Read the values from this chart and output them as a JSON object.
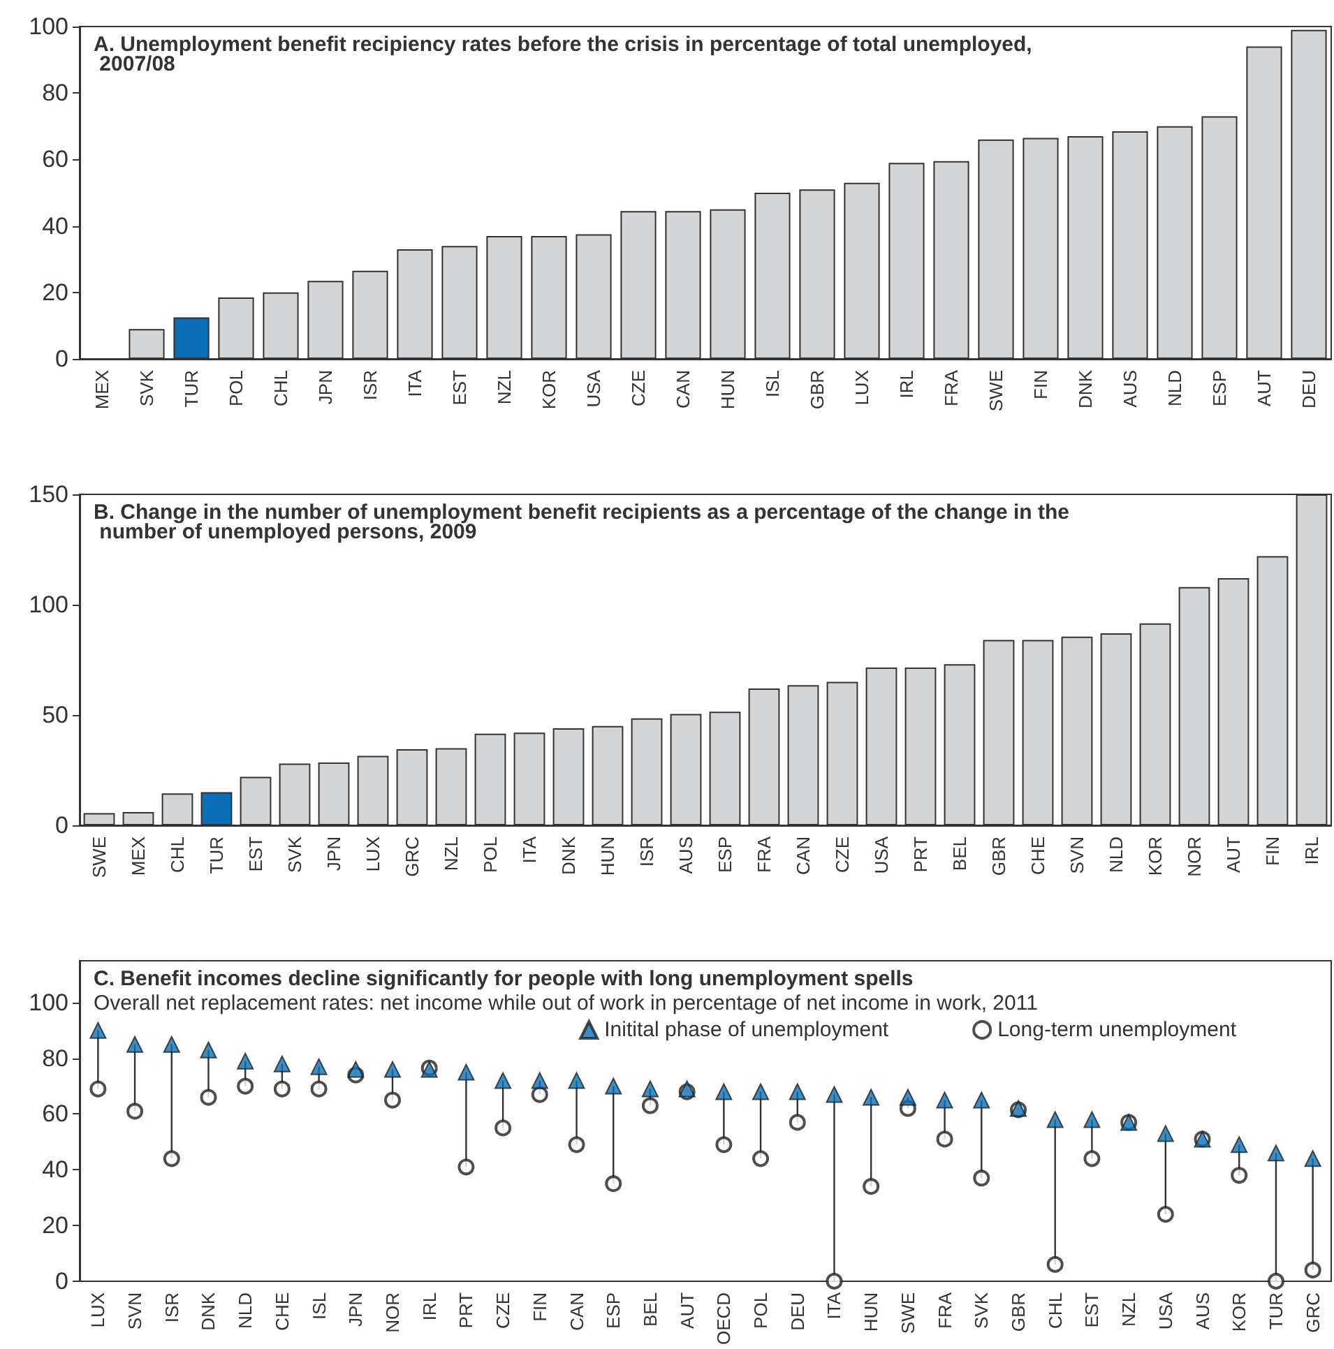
{
  "chart_data": [
    {
      "type": "bar",
      "title": "A. Unemployment benefit recipiency rates before the crisis in percentage of total unemployed,\n 2007/08",
      "categories": [
        "MEX",
        "SVK",
        "TUR",
        "POL",
        "CHL",
        "JPN",
        "ISR",
        "ITA",
        "EST",
        "NZL",
        "KOR",
        "USA",
        "CZE",
        "CAN",
        "HUN",
        "ISL",
        "GBR",
        "LUX",
        "IRL",
        "FRA",
        "SWE",
        "FIN",
        "DNK",
        "AUS",
        "NLD",
        "ESP",
        "AUT",
        "DEU"
      ],
      "values": [
        null,
        9,
        12.5,
        18.5,
        20,
        23.5,
        26.5,
        33,
        34,
        37,
        37,
        37.5,
        44.5,
        44.5,
        45,
        50,
        51,
        53,
        59,
        59.5,
        66,
        66.5,
        67,
        68.5,
        70,
        73,
        94,
        99
      ],
      "colors": [
        "#d4d5d7",
        "#d4d5d7",
        "#0b6fb8",
        "#d4d5d7",
        "#d4d5d7",
        "#d4d5d7",
        "#d4d5d7",
        "#d4d5d7",
        "#d4d5d7",
        "#d4d5d7",
        "#d4d5d7",
        "#d4d5d7",
        "#d4d5d7",
        "#d4d5d7",
        "#d4d5d7",
        "#d4d5d7",
        "#d4d5d7",
        "#d4d5d7",
        "#d4d5d7",
        "#d4d5d7",
        "#d4d5d7",
        "#d4d5d7",
        "#d4d5d7",
        "#d4d5d7",
        "#d4d5d7",
        "#d4d5d7",
        "#d4d5d7",
        "#d4d5d7"
      ],
      "ylim": [
        0,
        100
      ],
      "yticks": [
        0,
        20,
        40,
        60,
        80,
        100
      ],
      "grid": false,
      "legend": false
    },
    {
      "type": "bar",
      "title": "B. Change in the number of unemployment benefit recipients as a percentage of the change in the\n number of unemployed persons, 2009",
      "categories": [
        "SWE",
        "MEX",
        "CHL",
        "TUR",
        "EST",
        "SVK",
        "JPN",
        "LUX",
        "GRC",
        "NZL",
        "POL",
        "ITA",
        "DNK",
        "HUN",
        "ISR",
        "AUS",
        "ESP",
        "FRA",
        "CAN",
        "CZE",
        "USA",
        "PRT",
        "BEL",
        "GBR",
        "CHE",
        "SVN",
        "NLD",
        "KOR",
        "NOR",
        "AUT",
        "FIN",
        "IRL"
      ],
      "values": [
        5.5,
        6,
        14.5,
        15,
        22,
        28,
        28.5,
        31.5,
        34.5,
        35,
        41.5,
        42,
        44,
        45,
        48.5,
        50.5,
        51.5,
        62,
        63.5,
        65,
        71.5,
        71.5,
        73,
        84,
        84,
        85.5,
        87,
        91.5,
        108,
        112,
        122,
        150
      ],
      "colors": [
        "#d4d5d7",
        "#d4d5d7",
        "#d4d5d7",
        "#0b6fb8",
        "#d4d5d7",
        "#d4d5d7",
        "#d4d5d7",
        "#d4d5d7",
        "#d4d5d7",
        "#d4d5d7",
        "#d4d5d7",
        "#d4d5d7",
        "#d4d5d7",
        "#d4d5d7",
        "#d4d5d7",
        "#d4d5d7",
        "#d4d5d7",
        "#d4d5d7",
        "#d4d5d7",
        "#d4d5d7",
        "#d4d5d7",
        "#d4d5d7",
        "#d4d5d7",
        "#d4d5d7",
        "#d4d5d7",
        "#d4d5d7",
        "#d4d5d7",
        "#d4d5d7",
        "#d4d5d7",
        "#d4d5d7",
        "#d4d5d7",
        "#d4d5d7"
      ],
      "ylim": [
        0,
        150
      ],
      "yticks": [
        0,
        50,
        100,
        150
      ],
      "grid": false,
      "legend": false
    },
    {
      "type": "scatter",
      "title": "C. Benefit incomes decline significantly for people with long unemployment spells",
      "subtitle": "Overall net replacement rates: net income while out of work in percentage of net income in work, 2011",
      "categories": [
        "LUX",
        "SVN",
        "ISR",
        "DNK",
        "NLD",
        "CHE",
        "ISL",
        "JPN",
        "NOR",
        "IRL",
        "PRT",
        "CZE",
        "FIN",
        "CAN",
        "ESP",
        "BEL",
        "AUT",
        "OECD",
        "POL",
        "DEU",
        "ITA",
        "HUN",
        "SWE",
        "FRA",
        "SVK",
        "GBR",
        "CHL",
        "EST",
        "NZL",
        "USA",
        "AUS",
        "KOR",
        "TUR",
        "GRC"
      ],
      "series": [
        {
          "name": "Initital phase of unemployment",
          "color": "#0b6fb8",
          "marker": "triangle",
          "values": [
            90,
            85,
            85,
            83,
            79,
            78,
            77,
            76,
            76,
            76,
            75,
            72,
            72,
            72,
            70,
            69,
            69,
            68,
            68,
            68,
            67,
            66,
            66,
            65,
            65,
            62,
            58,
            58,
            57,
            53,
            51,
            49,
            46,
            44
          ]
        },
        {
          "name": "Long-term unemployment",
          "color": "#222222",
          "marker": "circle",
          "values": [
            69,
            61,
            44,
            66,
            70,
            69,
            69,
            74,
            65,
            76.5,
            41,
            55,
            67,
            49,
            35,
            63,
            68,
            49,
            44,
            57,
            0,
            34,
            62,
            51,
            37,
            61.5,
            6,
            44,
            57,
            24,
            51,
            38,
            0,
            4
          ]
        }
      ],
      "ylim": [
        0,
        115
      ],
      "yticks": [
        0,
        20,
        40,
        60,
        80,
        100
      ],
      "grid": false,
      "legend": "top right"
    }
  ]
}
